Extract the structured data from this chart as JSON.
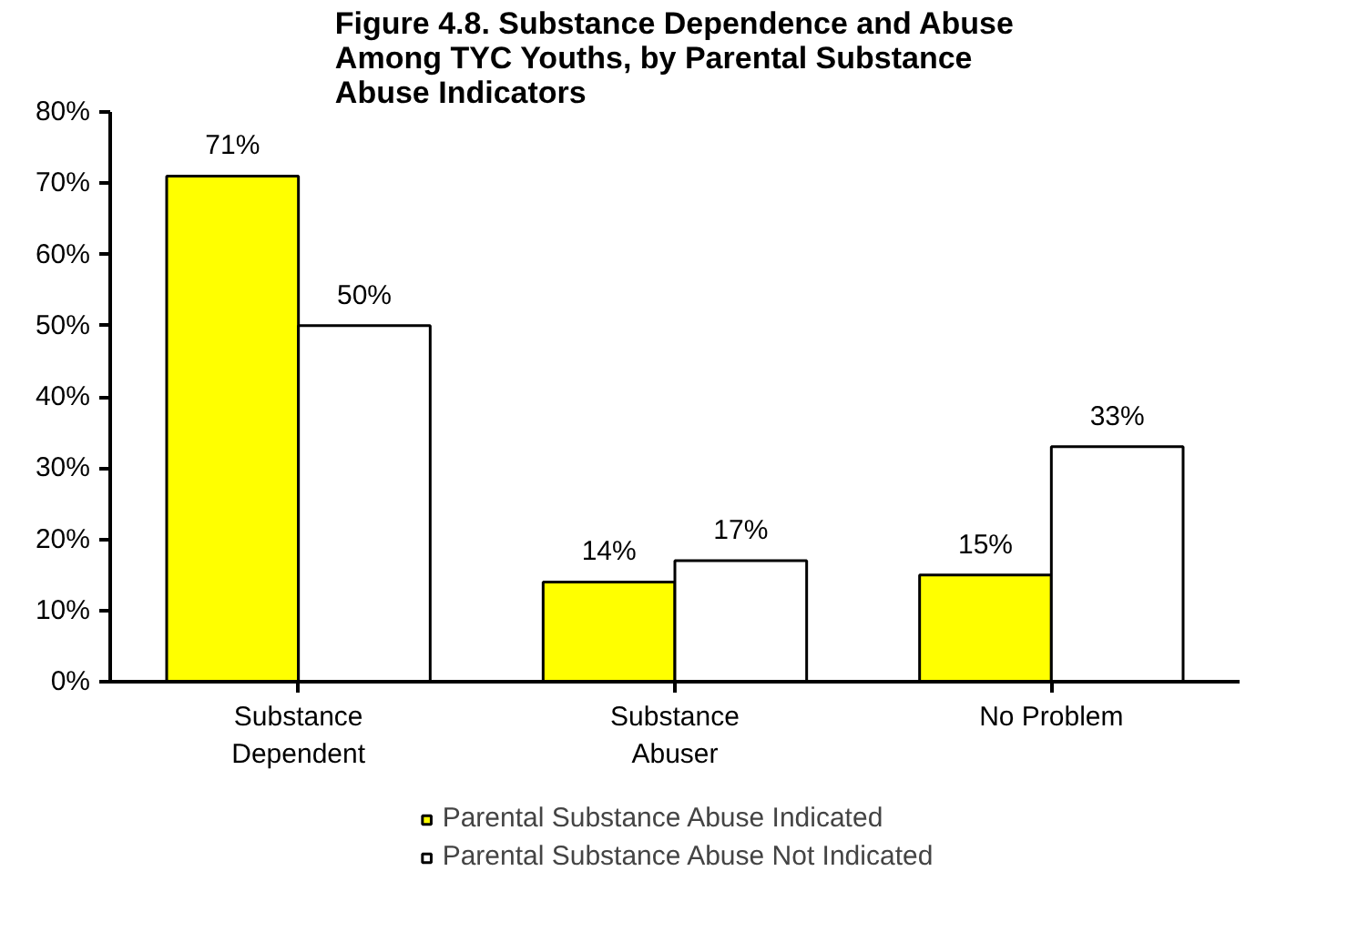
{
  "chart_data": {
    "type": "bar",
    "title": "Figure 4.8. Substance Dependence and Abuse\nAmong TYC Youths, by Parental Substance\nAbuse Indicators",
    "categories": [
      "Substance\nDependent",
      "Substance\nAbuser",
      "No Problem"
    ],
    "series": [
      {
        "name": "Parental Substance Abuse Indicated",
        "color": "#ffff00",
        "values": [
          71,
          14,
          15
        ],
        "value_labels": [
          "71%",
          "14%",
          "15%"
        ]
      },
      {
        "name": "Parental Substance Abuse Not Indicated",
        "color": "#ffffff",
        "values": [
          50,
          17,
          33
        ],
        "value_labels": [
          "50%",
          "17%",
          "33%"
        ]
      }
    ],
    "ylim": [
      0,
      80
    ],
    "yticks": [
      {
        "value": 0,
        "label": "0%"
      },
      {
        "value": 10,
        "label": "10%"
      },
      {
        "value": 20,
        "label": "20%"
      },
      {
        "value": 30,
        "label": "30%"
      },
      {
        "value": 40,
        "label": "40%"
      },
      {
        "value": 50,
        "label": "50%"
      },
      {
        "value": 60,
        "label": "60%"
      },
      {
        "value": 70,
        "label": "70%"
      },
      {
        "value": 80,
        "label": "80%"
      }
    ],
    "grid": false,
    "legend": "bottom"
  }
}
